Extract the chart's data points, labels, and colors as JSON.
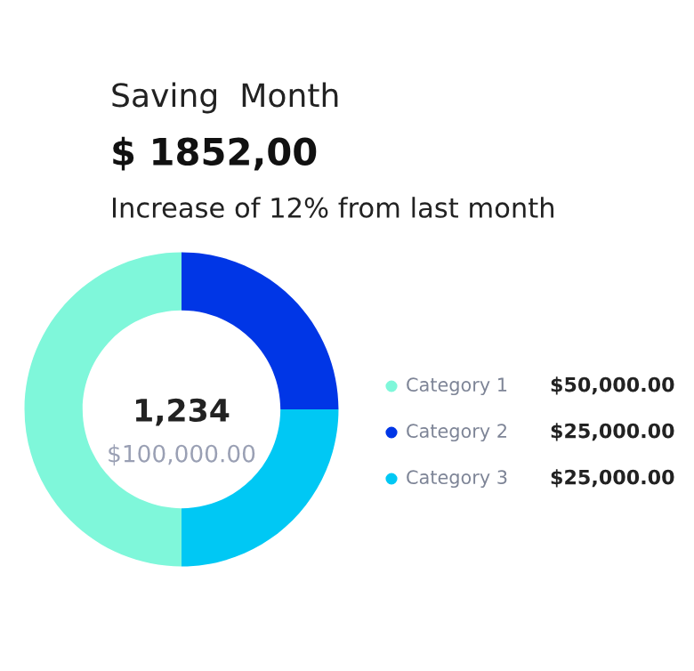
{
  "chart_data": {
    "type": "donut",
    "title": "Saving  Month",
    "subtitle": "$ 1852,00",
    "annotations": [
      "Increase of 12% from last month",
      "1,234",
      "$100,000.00"
    ],
    "categories": [
      "Category 1",
      "Category 2",
      "Category 3"
    ],
    "values": [
      50000,
      25000,
      25000
    ],
    "colors": [
      "#7ff7da",
      "#0036e6",
      "#00c8f4"
    ],
    "value_labels": [
      "$50,000.00",
      "$25,000.00",
      "$25,000.00"
    ],
    "legend": "right"
  }
}
